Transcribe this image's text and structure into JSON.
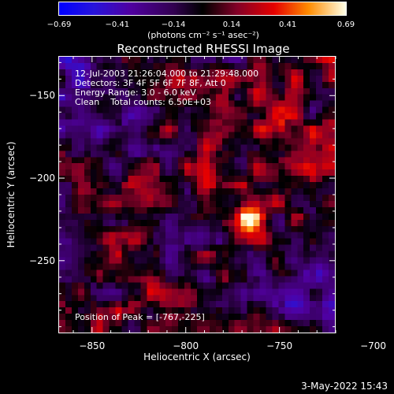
{
  "chart_data": {
    "type": "heatmap",
    "title": "Reconstructed RHESSI Image",
    "xlabel": "Heliocentric X (arcsec)",
    "ylabel": "Heliocentric Y (arcsec)",
    "xlim": [
      -868,
      -720
    ],
    "ylim": [
      -294,
      -126
    ],
    "xticks": [
      -850,
      -800,
      -750,
      -700
    ],
    "xtick_labels": [
      "−850",
      "−800",
      "−750",
      "−700"
    ],
    "yticks": [
      -150,
      -200,
      -250
    ],
    "ytick_labels": [
      "−150",
      "−200",
      "−250"
    ],
    "colorbar": {
      "ticks": [
        -0.69,
        -0.41,
        -0.14,
        0.14,
        0.41,
        0.69
      ],
      "tick_labels": [
        "−0.69",
        "−0.41",
        "−0.14",
        "0.14",
        "0.41",
        "0.69"
      ],
      "units": "(photons cm⁻² s⁻¹ asec⁻²)",
      "range": [
        -0.69,
        0.69
      ]
    },
    "annotations": {
      "time_range": "12-Jul-2003 21:26:04.000 to 21:29:48.000",
      "detectors": "Detectors: 3F 4F 5F 6F 7F 8F, Att 0",
      "energy": "Energy Range: 3.0 - 6.0 keV",
      "clean": "Clean    Total counts: 6.50E+03",
      "peak": "Position of Peak = [-767,-225]"
    },
    "peak": {
      "x": -767,
      "y": -225,
      "value": 0.69
    }
  },
  "footer": {
    "date": "3-May-2022 15:43"
  },
  "colors": {
    "background": "#000000",
    "foreground": "#ffffff"
  }
}
